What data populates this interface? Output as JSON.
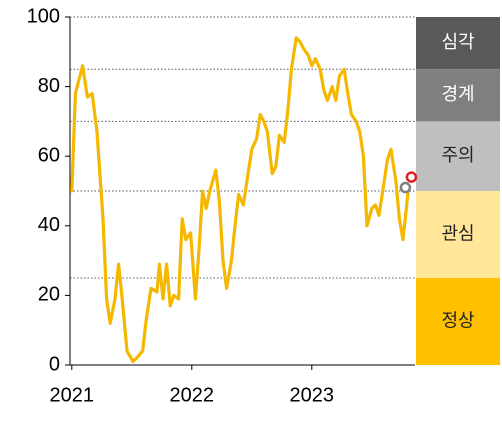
{
  "chart_data": {
    "type": "line",
    "x": [
      2021.0,
      2021.03,
      2021.09,
      2021.13,
      2021.17,
      2021.21,
      2021.26,
      2021.29,
      2021.32,
      2021.36,
      2021.39,
      2021.42,
      2021.46,
      2021.51,
      2021.54,
      2021.59,
      2021.62,
      2021.66,
      2021.71,
      2021.73,
      2021.76,
      2021.79,
      2021.82,
      2021.85,
      2021.89,
      2021.92,
      2021.95,
      2021.99,
      2022.03,
      2022.06,
      2022.09,
      2022.12,
      2022.15,
      2022.2,
      2022.23,
      2022.26,
      2022.29,
      2022.33,
      2022.36,
      2022.39,
      2022.43,
      2022.46,
      2022.5,
      2022.54,
      2022.57,
      2022.6,
      2022.63,
      2022.67,
      2022.7,
      2022.73,
      2022.77,
      2022.8,
      2022.83,
      2022.87,
      2022.9,
      2022.93,
      2022.97,
      2023.0,
      2023.03,
      2023.07,
      2023.1,
      2023.13,
      2023.17,
      2023.2,
      2023.23,
      2023.27,
      2023.3,
      2023.33,
      2023.37,
      2023.4,
      2023.43,
      2023.46,
      2023.5,
      2023.53,
      2023.56,
      2023.6,
      2023.63,
      2023.66,
      2023.7,
      2023.73,
      2023.76,
      2023.8,
      2023.81
    ],
    "series": [
      {
        "color": "#f5b800",
        "values": [
          50,
          78,
          86,
          77,
          78,
          67,
          42,
          19,
          12,
          19,
          29,
          19,
          4,
          1,
          2,
          4,
          13,
          22,
          21,
          29,
          19,
          29,
          17,
          20,
          19,
          42,
          36,
          38,
          19,
          33,
          50,
          45,
          50,
          56,
          47,
          30,
          22,
          30,
          40,
          49,
          46,
          53,
          62,
          65,
          72,
          70,
          67,
          55,
          57,
          66,
          64,
          73,
          85,
          94,
          93,
          91,
          89,
          86,
          88,
          85,
          79,
          76,
          80,
          76,
          83,
          85,
          78,
          72,
          70,
          67,
          60,
          40,
          45,
          46,
          43,
          52,
          59,
          62,
          53,
          42,
          36,
          49,
          51
        ]
      }
    ],
    "markers": [
      {
        "x": 2023.78,
        "value": 51,
        "color": "#808080"
      },
      {
        "x": 2023.83,
        "value": 54,
        "color": "#e0201b"
      }
    ],
    "bands": [
      {
        "label": "심각",
        "from": 85,
        "to": 100,
        "color": "#595959",
        "text_color": "#ffffff"
      },
      {
        "label": "경계",
        "from": 70,
        "to": 85,
        "color": "#7f7f7f",
        "text_color": "#ffffff"
      },
      {
        "label": "주의",
        "from": 50,
        "to": 70,
        "color": "#bfbfbf",
        "text_color": "#222222"
      },
      {
        "label": "관심",
        "from": 25,
        "to": 50,
        "color": "#ffe699",
        "text_color": "#222222"
      },
      {
        "label": "정상",
        "from": 0,
        "to": 25,
        "color": "#ffc000",
        "text_color": "#222222"
      }
    ],
    "xlim": [
      2020.985,
      2023.86
    ],
    "xticks": [
      2021,
      2022,
      2023
    ],
    "ylim": [
      0,
      100
    ],
    "yticks": [
      0,
      20,
      40,
      60,
      80,
      100
    ]
  }
}
